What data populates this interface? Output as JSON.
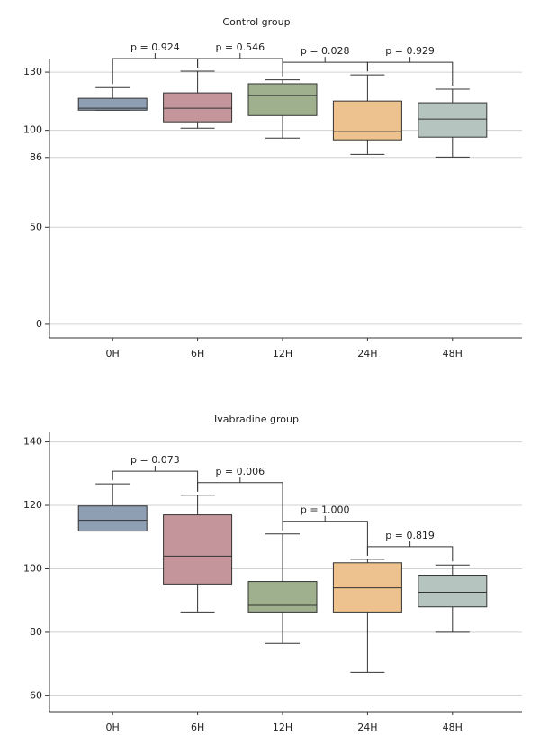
{
  "chart_data": [
    {
      "type": "box",
      "title": "Control group",
      "categories": [
        "0H",
        "6H",
        "12H",
        "24H",
        "48H"
      ],
      "boxes": [
        {
          "min": 110.4,
          "q1": 110.4,
          "median": 111.4,
          "q3": 116.5,
          "max": 122,
          "color": "#8f9fb3"
        },
        {
          "min": 101.1,
          "q1": 104.4,
          "median": 111.4,
          "q3": 119.3,
          "max": 130.5,
          "color": "#c4959a"
        },
        {
          "min": 96,
          "q1": 107.6,
          "median": 117.9,
          "q3": 124,
          "max": 126,
          "color": "#9fb08e"
        },
        {
          "min": 87.6,
          "q1": 95.1,
          "median": 99.3,
          "q3": 115.1,
          "max": 128.6,
          "color": "#eec28e"
        },
        {
          "min": 86.2,
          "q1": 96.5,
          "median": 105.8,
          "q3": 114.2,
          "max": 121.2,
          "color": "#b6c4c0"
        }
      ],
      "annotations": [
        "p = 0.924",
        "p = 0.546",
        "p = 0.028",
        "p = 0.929"
      ],
      "ylim": [
        -7,
        137
      ],
      "yticks": [
        0,
        50,
        86,
        100,
        130
      ],
      "grid": true
    },
    {
      "type": "box",
      "title": "Ivabradine group",
      "categories": [
        "0H",
        "6H",
        "12H",
        "24H",
        "48H"
      ],
      "boxes": [
        {
          "min": 111.9,
          "q1": 111.9,
          "median": 115.3,
          "q3": 119.8,
          "max": 126.8,
          "color": "#8f9fb3"
        },
        {
          "min": 86.4,
          "q1": 95.2,
          "median": 104,
          "q3": 117,
          "max": 123.2,
          "color": "#c4959a"
        },
        {
          "min": 76.5,
          "q1": 86.4,
          "median": 88.5,
          "q3": 96,
          "max": 111,
          "color": "#9fb08e"
        },
        {
          "min": 67.4,
          "q1": 86.4,
          "median": 94,
          "q3": 101.9,
          "max": 103,
          "color": "#eec28e"
        },
        {
          "min": 80,
          "q1": 88,
          "median": 92.6,
          "q3": 98,
          "max": 101.2,
          "color": "#b6c4c0"
        }
      ],
      "annotations": [
        "p = 0.073",
        "p = 0.006",
        "p = 1.000",
        "p = 0.819"
      ],
      "ylim": [
        55,
        143
      ],
      "yticks": [
        60,
        80,
        100,
        120,
        140
      ],
      "grid": true
    }
  ]
}
